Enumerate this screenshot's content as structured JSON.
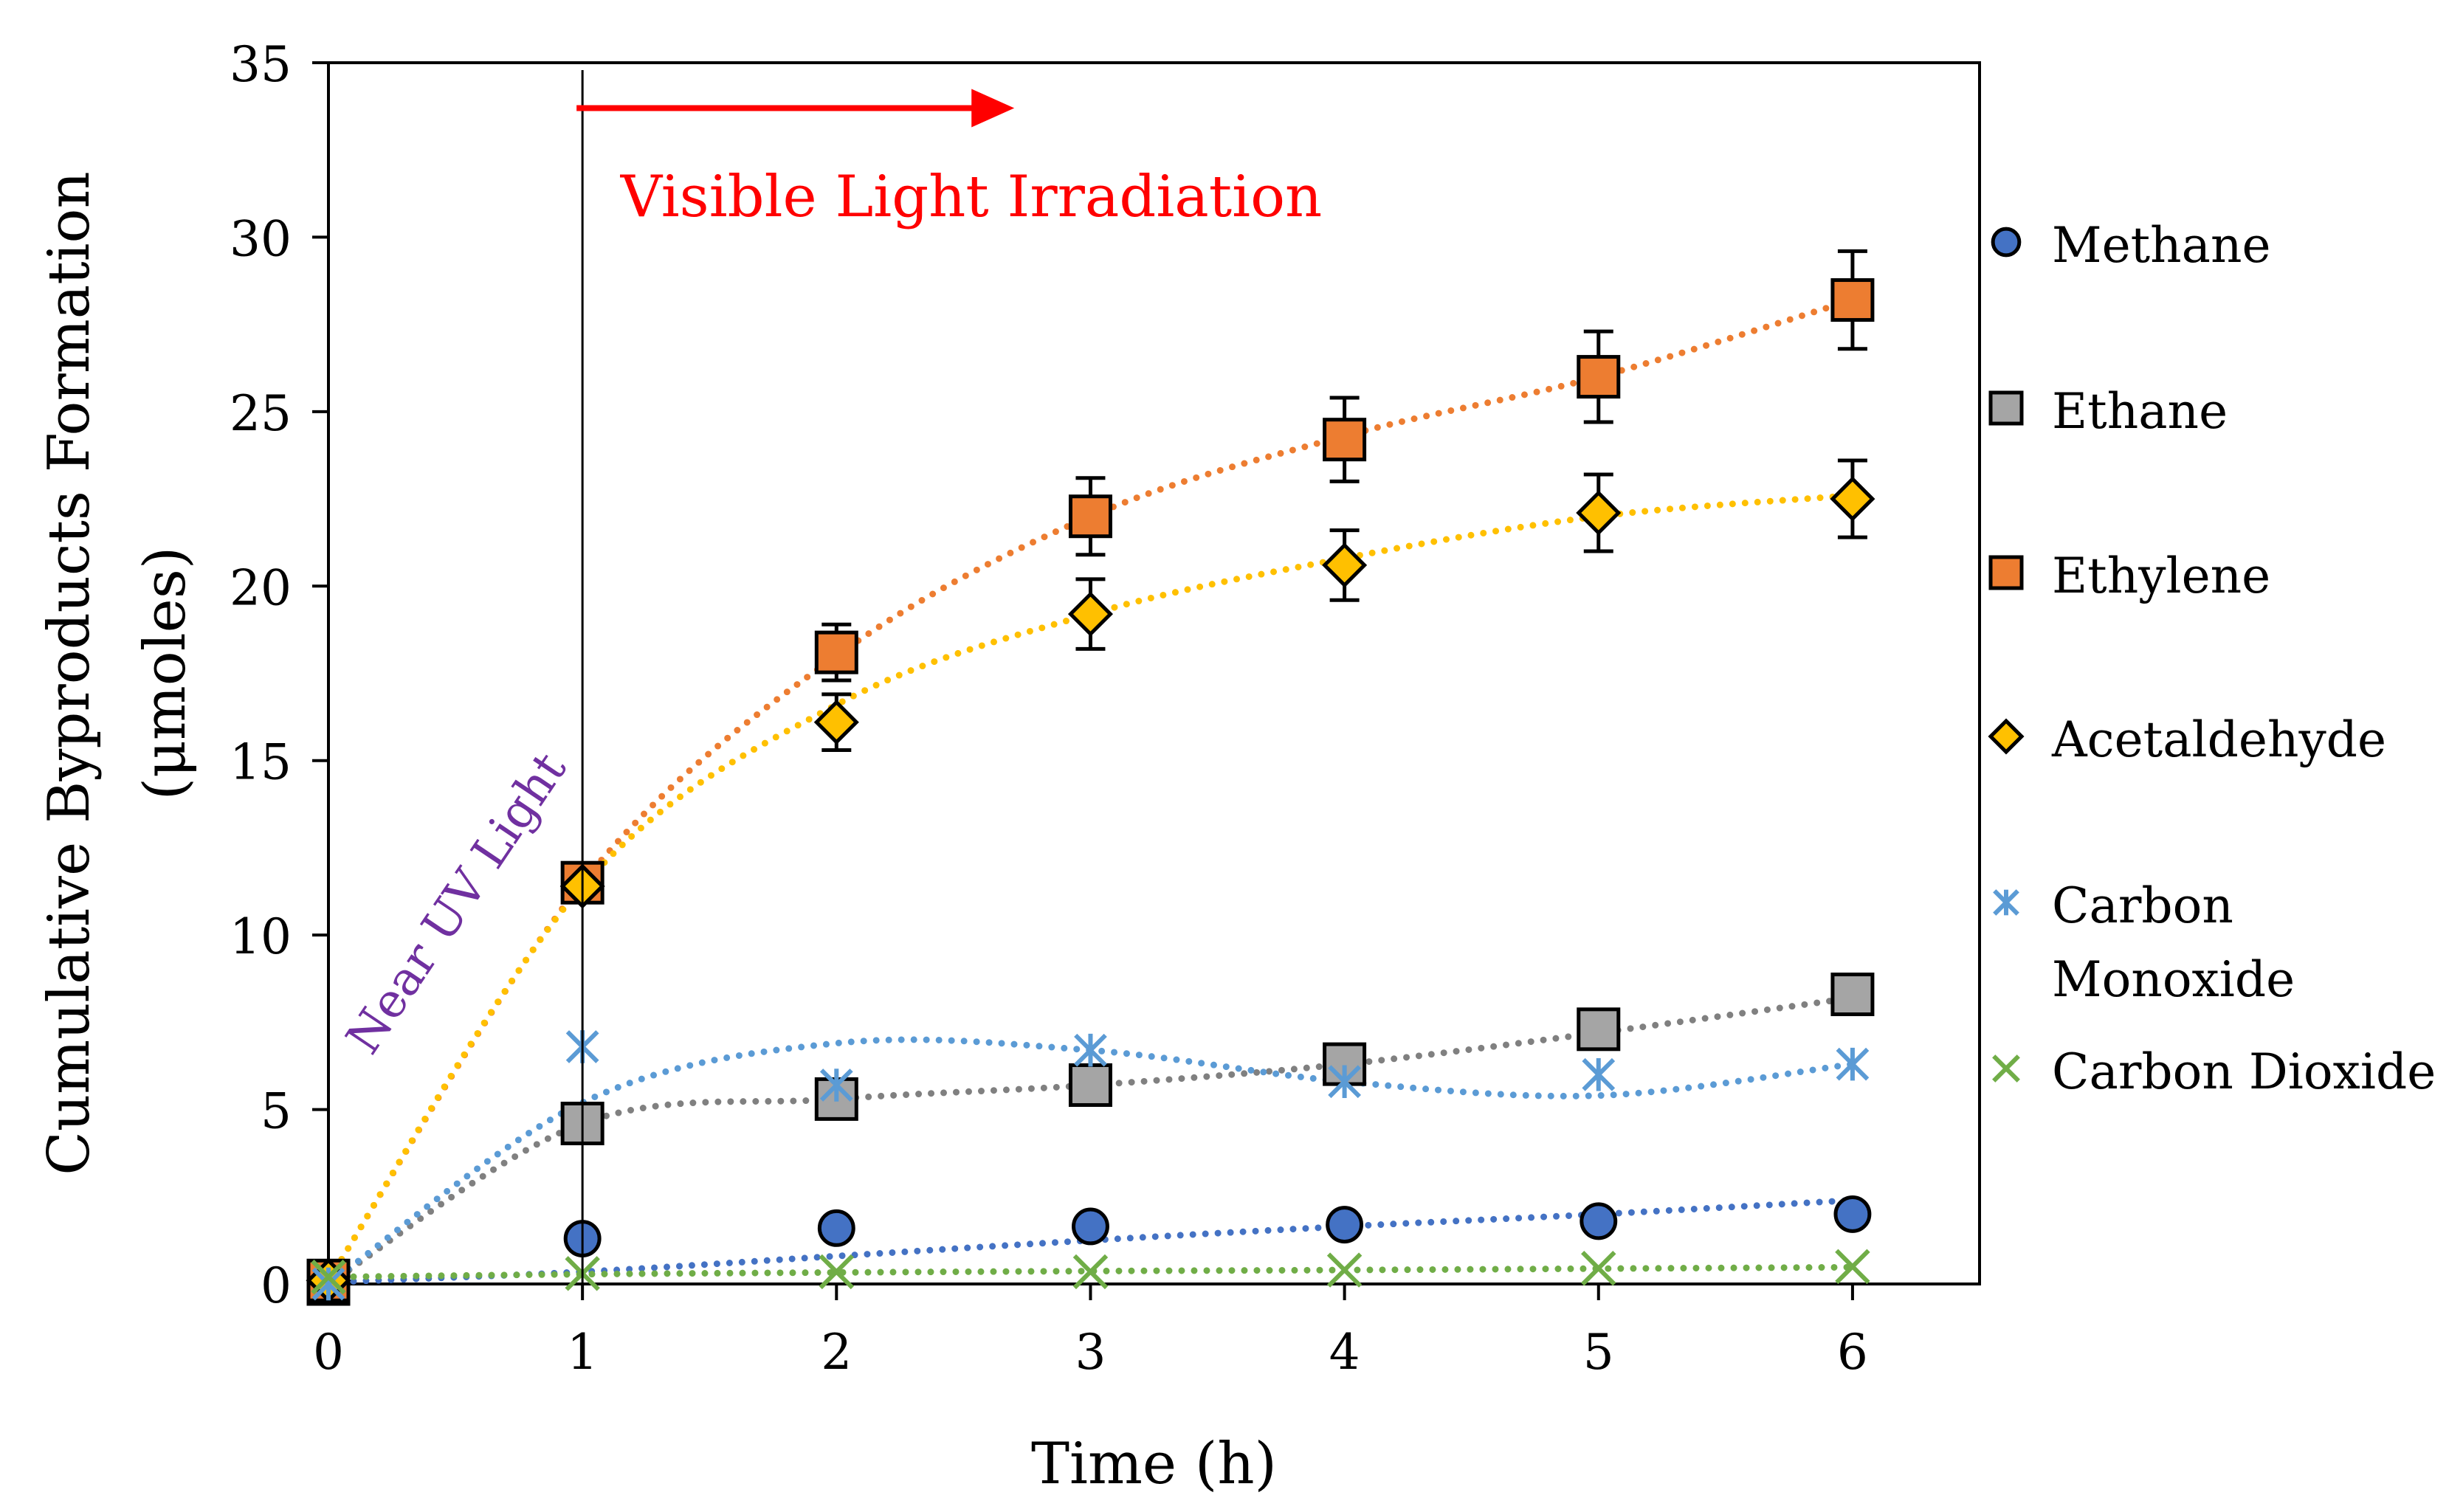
{
  "chart_data": {
    "type": "scatter",
    "title": "",
    "xlabel": "Time (h)",
    "ylabel_lines": [
      "Cumulative Byproducts Formation",
      "(μmoles)"
    ],
    "xlim": [
      0,
      6.5
    ],
    "ylim": [
      0,
      35
    ],
    "x_ticks": [
      "0",
      "1",
      "2",
      "3",
      "4",
      "5",
      "6"
    ],
    "y_ticks": [
      "0",
      "5",
      "10",
      "15",
      "20",
      "25",
      "30",
      "35"
    ],
    "x": [
      0,
      1,
      2,
      3,
      4,
      5,
      6
    ],
    "legend_position": "right",
    "series": [
      {
        "name": "Methane",
        "marker": "circle",
        "color": "#4472C4",
        "trend_color": "#4472C4",
        "values": [
          0.0,
          1.3,
          1.6,
          1.65,
          1.7,
          1.8,
          2.0
        ],
        "errors": [
          0,
          0,
          0,
          0,
          0,
          0,
          0
        ],
        "trend": [
          0.05,
          0.35,
          0.8,
          1.25,
          1.65,
          2.0,
          2.4
        ]
      },
      {
        "name": "Ethane",
        "marker": "square",
        "color": "#A5A5A5",
        "trend_color": "#808080",
        "values": [
          0.0,
          4.6,
          5.3,
          5.7,
          6.3,
          7.3,
          8.3
        ],
        "errors": [
          0,
          0,
          0.3,
          0,
          0.3,
          0.5,
          0.5
        ],
        "trend": [
          0.0,
          4.6,
          5.3,
          5.7,
          6.3,
          7.2,
          8.2
        ]
      },
      {
        "name": "Ethylene",
        "marker": "square",
        "color": "#ED7D31",
        "trend_color": "#ED7D31",
        "values": [
          0.1,
          11.5,
          18.1,
          22.0,
          24.2,
          26.0,
          28.2
        ],
        "errors": [
          0,
          0,
          0.8,
          1.1,
          1.2,
          1.3,
          1.4
        ],
        "trend": [
          0.1,
          11.5,
          18.0,
          22.0,
          24.3,
          26.0,
          28.2
        ]
      },
      {
        "name": "Acetaldehyde",
        "marker": "diamond",
        "color": "#FFC000",
        "trend_color": "#FFC000",
        "values": [
          0.1,
          11.4,
          16.1,
          19.2,
          20.6,
          22.1,
          22.5
        ],
        "errors": [
          0,
          0,
          0.8,
          1.0,
          1.0,
          1.1,
          1.1
        ],
        "trend": [
          0.1,
          11.4,
          16.6,
          19.2,
          20.8,
          22.0,
          22.6
        ]
      },
      {
        "name": "Carbon Monoxide",
        "marker": "asterisk",
        "color": "#5B9BD5",
        "trend_color": "#5B9BD5",
        "values": [
          0.0,
          6.8,
          5.7,
          6.7,
          5.8,
          6.0,
          6.3
        ],
        "errors": [
          0,
          0,
          0,
          0,
          0,
          0,
          0
        ],
        "trend": [
          0.0,
          5.2,
          6.9,
          6.7,
          5.8,
          5.4,
          6.3
        ]
      },
      {
        "name": "Carbon Dioxide",
        "marker": "x",
        "color": "#70AD47",
        "trend_color": "#70AD47",
        "values": [
          0.2,
          0.3,
          0.35,
          0.35,
          0.4,
          0.45,
          0.5
        ],
        "errors": [
          0,
          0,
          0,
          0,
          0,
          0,
          0
        ],
        "trend": [
          0.2,
          0.28,
          0.33,
          0.37,
          0.4,
          0.44,
          0.48
        ]
      }
    ],
    "annotations": {
      "visible_light": "Visible Light Irradiation",
      "near_uv": "Near UV Light",
      "divider_x": 1,
      "arrow_from_x": 1,
      "arrow_to_x": 2.7,
      "arrow_y": 33.7,
      "visible_color": "#FF0000",
      "uv_color": "#7030A0"
    }
  }
}
